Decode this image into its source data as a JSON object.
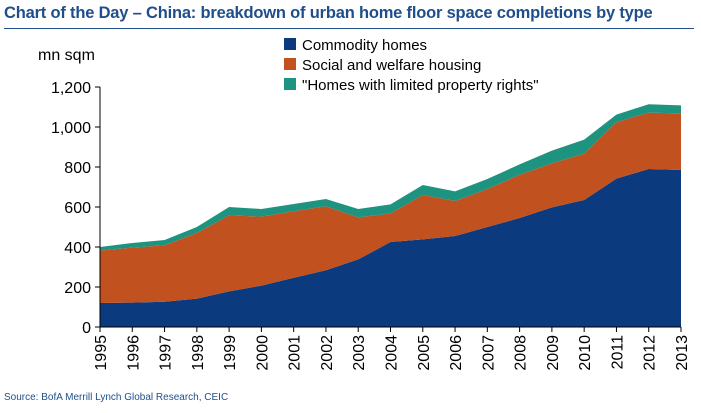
{
  "title": "Chart of the Day – China: breakdown of urban home floor space completions by type",
  "source": "Source: BofA Merrill Lynch Global Research, CEIC",
  "chart_data": {
    "type": "area",
    "stacked": true,
    "title": "Chart of the Day – China: breakdown of urban home floor space completions by type",
    "ylabel": "mn sqm",
    "xlabel": "",
    "ylim": [
      0,
      1200
    ],
    "yticks": [
      "0",
      "200",
      "400",
      "600",
      "800",
      "1,000",
      "1,200"
    ],
    "ytick_values": [
      0,
      200,
      400,
      600,
      800,
      1000,
      1200
    ],
    "grid": false,
    "legend": "top",
    "x": [
      "1995",
      "1996",
      "1997",
      "1998",
      "1999",
      "2000",
      "2001",
      "2002",
      "2003",
      "2004",
      "2005",
      "2006",
      "2007",
      "2008",
      "2009",
      "2010",
      "2011",
      "2012",
      "2013"
    ],
    "series": [
      {
        "name": "Commodity homes",
        "color": "#0b3a7e",
        "values": [
          120,
          122,
          126,
          142,
          178,
          207,
          246,
          284,
          338,
          425,
          438,
          455,
          500,
          545,
          598,
          635,
          742,
          790,
          785
        ]
      },
      {
        "name": "Social and welfare housing",
        "color": "#c1511e",
        "values": [
          262,
          275,
          283,
          328,
          380,
          345,
          333,
          320,
          210,
          143,
          222,
          175,
          190,
          216,
          220,
          232,
          282,
          282,
          283
        ]
      },
      {
        "name": "\"Homes with limited property rights\"",
        "color": "#1e9380",
        "values": [
          18,
          23,
          26,
          30,
          42,
          38,
          36,
          36,
          42,
          45,
          50,
          48,
          50,
          52,
          64,
          70,
          38,
          42,
          40
        ]
      }
    ]
  }
}
